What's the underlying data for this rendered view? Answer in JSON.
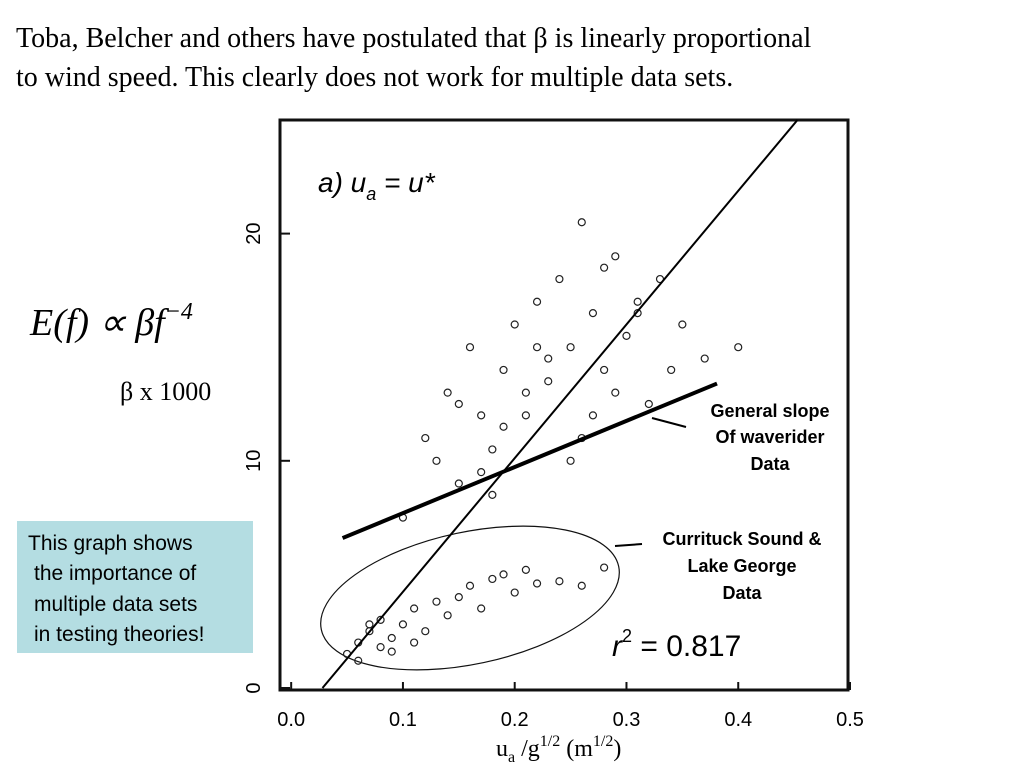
{
  "slide": {
    "heading": [
      "Toba, Belcher and others have postulated that β is linearly proportional",
      "to wind speed.  This clearly does not work for multiple data sets."
    ],
    "formula": {
      "main": "E(f) ∝ βf",
      "exponent": "−4"
    },
    "note": [
      "This graph shows",
      "the importance of",
      "multiple data sets",
      "in testing theories!"
    ]
  },
  "chart_data": {
    "type": "scatter",
    "panel_label": {
      "prefix": "a) u",
      "sub": "a",
      "suffix": " = u*"
    },
    "y_label": "β x 1000",
    "x_label": {
      "base": "u",
      "sub": "a",
      "mid": " /g",
      "sup": "1/2",
      "unit": "  (m",
      "unit_sup": "1/2",
      "close": ")"
    },
    "r2": {
      "prefix": "r",
      "sup": "2",
      "text": " =  0.817"
    },
    "annotations": [
      {
        "lines": [
          "General slope",
          "Of waverider",
          "Data"
        ]
      },
      {
        "lines": [
          "Currituck Sound &",
          "Lake George",
          "Data"
        ]
      }
    ],
    "xlim": [
      -0.01,
      0.5
    ],
    "ylim": [
      0,
      25
    ],
    "xticks": [
      {
        "value": 0,
        "label": "0.0"
      },
      0.1,
      0.2,
      0.3,
      0.4,
      0.5
    ],
    "yticks": [
      0,
      10,
      20
    ],
    "fit_lines": [
      {
        "x": [
          0.028,
          0.453
        ],
        "y": [
          0,
          25
        ]
      },
      {
        "x": [
          0.046,
          0.381
        ],
        "y": [
          6.6,
          13.4
        ]
      }
    ],
    "color": "#222222",
    "x": [
      0.12,
      0.14,
      0.15,
      0.16,
      0.17,
      0.18,
      0.19,
      0.2,
      0.21,
      0.22,
      0.23,
      0.24,
      0.25,
      0.26,
      0.27,
      0.28,
      0.29,
      0.3,
      0.31,
      0.32,
      0.33,
      0.35,
      0.37,
      0.4,
      0.1,
      0.13,
      0.15,
      0.17,
      0.19,
      0.21,
      0.23,
      0.25,
      0.27,
      0.29,
      0.31,
      0.34,
      0.26,
      0.28,
      0.22,
      0.18,
      0.05,
      0.06,
      0.06,
      0.07,
      0.08,
      0.08,
      0.09,
      0.1,
      0.11,
      0.12,
      0.13,
      0.14,
      0.15,
      0.16,
      0.17,
      0.18,
      0.19,
      0.2,
      0.21,
      0.22,
      0.24,
      0.26,
      0.28,
      0.07,
      0.09,
      0.11
    ],
    "y": [
      11,
      13,
      9,
      15,
      12,
      10.5,
      14,
      16,
      12,
      17,
      13.5,
      18,
      15,
      11,
      16.5,
      14,
      19,
      15.5,
      17,
      12.5,
      18,
      16,
      14.5,
      15,
      7.5,
      10,
      12.5,
      9.5,
      11.5,
      13,
      14.5,
      10,
      12,
      13,
      16.5,
      14,
      20.5,
      18.5,
      15,
      8.5,
      1.5,
      2,
      1.2,
      2.5,
      1.8,
      3,
      2.2,
      2.8,
      3.5,
      2.5,
      3.8,
      3.2,
      4,
      4.5,
      3.5,
      4.8,
      5,
      4.2,
      5.2,
      4.6,
      4.7,
      4.5,
      5.3,
      2.8,
      1.6,
      2
    ]
  }
}
